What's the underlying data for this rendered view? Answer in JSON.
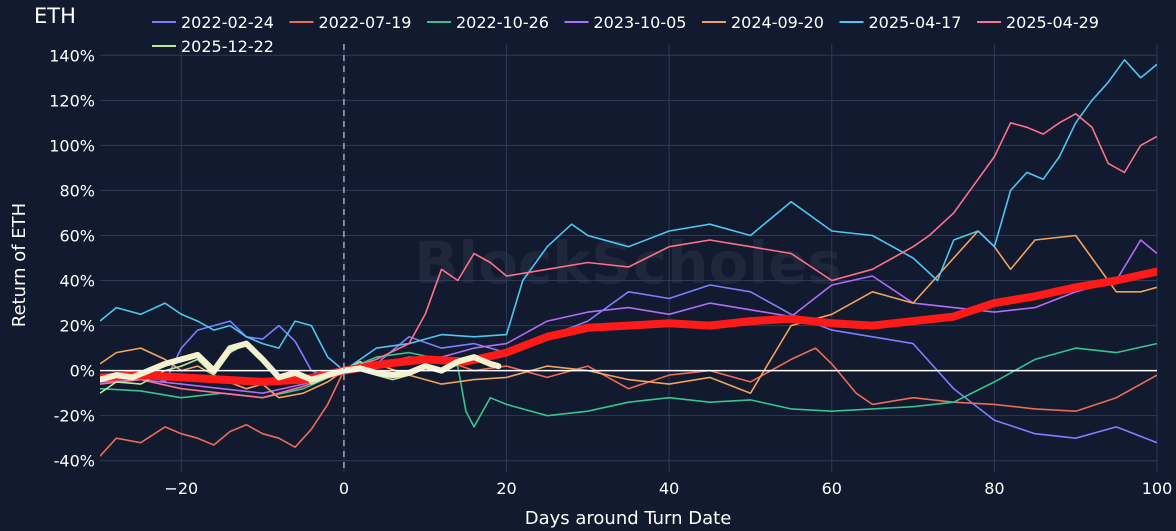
{
  "chart_data": {
    "type": "line",
    "title": "ETH",
    "xlabel": "Days around Turn Date",
    "ylabel": "Return of ETH",
    "xlim": [
      -30,
      100
    ],
    "ylim": [
      -45,
      145
    ],
    "xticks": [
      -20,
      0,
      20,
      40,
      60,
      80,
      100
    ],
    "yticks": [
      -40,
      -20,
      0,
      20,
      40,
      60,
      80,
      100,
      120,
      140
    ],
    "ytick_suffix": "%",
    "grid": true,
    "legend_position": "top",
    "watermark": "BlockScholes",
    "colors": {
      "background": "#111a2e",
      "grid": "#2c3a5a",
      "text": "#ffffff",
      "zero_line": "#ffffff",
      "turn_line": "#9aa3b5",
      "average": "#ff1a1a",
      "recent_average": "#f4f1d0"
    },
    "series": [
      {
        "name": "2022-02-24",
        "color": "#7a80ff",
        "x": [
          -30,
          -25,
          -22,
          -20,
          -18,
          -16,
          -14,
          -12,
          -10,
          -8,
          -6,
          -4,
          -2,
          0,
          4,
          8,
          12,
          16,
          20,
          25,
          30,
          35,
          40,
          45,
          50,
          55,
          60,
          65,
          70,
          75,
          80,
          85,
          90,
          95,
          100
        ],
        "y": [
          -2,
          0,
          -5,
          10,
          18,
          20,
          22,
          15,
          14,
          20,
          13,
          0,
          -3,
          0,
          3,
          15,
          10,
          12,
          8,
          15,
          22,
          35,
          32,
          38,
          35,
          25,
          18,
          15,
          12,
          -8,
          -22,
          -28,
          -30,
          -25,
          -32
        ]
      },
      {
        "name": "2022-07-19",
        "color": "#ee6b55",
        "x": [
          -30,
          -28,
          -25,
          -22,
          -20,
          -18,
          -16,
          -14,
          -12,
          -10,
          -8,
          -6,
          -4,
          -2,
          0,
          4,
          8,
          12,
          16,
          20,
          25,
          30,
          35,
          40,
          45,
          50,
          55,
          58,
          60,
          63,
          65,
          70,
          75,
          80,
          85,
          90,
          95,
          100
        ],
        "y": [
          -38,
          -30,
          -32,
          -25,
          -28,
          -30,
          -33,
          -27,
          -24,
          -28,
          -30,
          -34,
          -26,
          -15,
          0,
          3,
          6,
          5,
          0,
          2,
          -3,
          2,
          -8,
          -2,
          0,
          -5,
          5,
          10,
          3,
          -10,
          -15,
          -12,
          -14,
          -15,
          -17,
          -18,
          -12,
          -2
        ]
      },
      {
        "name": "2022-10-26",
        "color": "#35c490",
        "x": [
          -30,
          -25,
          -20,
          -15,
          -10,
          -5,
          0,
          4,
          8,
          12,
          14,
          15,
          16,
          18,
          20,
          25,
          30,
          35,
          40,
          45,
          50,
          55,
          60,
          65,
          70,
          75,
          80,
          85,
          90,
          95,
          100
        ],
        "y": [
          -8,
          -9,
          -12,
          -10,
          -12,
          -8,
          0,
          6,
          8,
          5,
          2,
          -18,
          -25,
          -12,
          -15,
          -20,
          -18,
          -14,
          -12,
          -14,
          -13,
          -17,
          -18,
          -17,
          -16,
          -14,
          -5,
          5,
          10,
          8,
          12
        ]
      },
      {
        "name": "2023-10-05",
        "color": "#b06ef5",
        "x": [
          -30,
          -25,
          -20,
          -15,
          -10,
          -5,
          0,
          4,
          8,
          12,
          16,
          20,
          25,
          30,
          35,
          40,
          45,
          50,
          55,
          60,
          65,
          70,
          75,
          80,
          85,
          90,
          95,
          98,
          100
        ],
        "y": [
          -5,
          -4,
          -6,
          -8,
          -10,
          -6,
          0,
          2,
          4,
          6,
          10,
          12,
          22,
          26,
          28,
          25,
          30,
          27,
          24,
          38,
          42,
          30,
          28,
          26,
          28,
          35,
          40,
          58,
          52
        ]
      },
      {
        "name": "2024-09-20",
        "color": "#f3a35c",
        "x": [
          -30,
          -28,
          -25,
          -22,
          -20,
          -18,
          -15,
          -12,
          -10,
          -8,
          -5,
          -2,
          0,
          4,
          8,
          12,
          16,
          20,
          25,
          30,
          35,
          40,
          45,
          50,
          55,
          60,
          65,
          70,
          75,
          78,
          80,
          82,
          85,
          90,
          95,
          98,
          100
        ],
        "y": [
          3,
          8,
          10,
          5,
          0,
          2,
          -4,
          -8,
          -6,
          -12,
          -10,
          -5,
          0,
          3,
          -2,
          -6,
          -4,
          -3,
          2,
          0,
          -4,
          -6,
          -3,
          -10,
          20,
          25,
          35,
          30,
          50,
          62,
          55,
          45,
          58,
          60,
          35,
          35,
          37
        ]
      },
      {
        "name": "2025-04-17",
        "color": "#4fc6f0",
        "x": [
          -30,
          -28,
          -25,
          -22,
          -20,
          -18,
          -16,
          -14,
          -12,
          -10,
          -8,
          -6,
          -4,
          -2,
          0,
          4,
          8,
          12,
          16,
          20,
          22,
          25,
          28,
          30,
          35,
          40,
          45,
          50,
          55,
          60,
          65,
          70,
          73,
          75,
          78,
          80,
          82,
          84,
          86,
          88,
          90,
          92,
          94,
          96,
          98,
          100
        ],
        "y": [
          22,
          28,
          25,
          30,
          25,
          22,
          18,
          20,
          15,
          12,
          10,
          22,
          20,
          6,
          0,
          10,
          12,
          16,
          15,
          16,
          40,
          55,
          65,
          60,
          55,
          62,
          65,
          60,
          75,
          62,
          60,
          50,
          40,
          58,
          62,
          55,
          80,
          88,
          85,
          95,
          110,
          120,
          128,
          138,
          130,
          136
        ]
      },
      {
        "name": "2025-04-29",
        "color": "#ff6f8f",
        "x": [
          -30,
          -25,
          -20,
          -15,
          -10,
          -5,
          0,
          4,
          8,
          10,
          12,
          14,
          16,
          18,
          20,
          25,
          30,
          35,
          40,
          45,
          50,
          55,
          60,
          65,
          70,
          72,
          75,
          78,
          80,
          82,
          84,
          86,
          88,
          90,
          92,
          94,
          96,
          98,
          100
        ],
        "y": [
          -6,
          -4,
          -8,
          -10,
          -12,
          -7,
          0,
          5,
          12,
          25,
          45,
          40,
          52,
          48,
          42,
          45,
          48,
          46,
          55,
          58,
          55,
          52,
          40,
          45,
          55,
          60,
          70,
          85,
          95,
          110,
          108,
          105,
          110,
          114,
          108,
          92,
          88,
          100,
          104
        ]
      },
      {
        "name": "2025-12-22",
        "color": "#b8e89a",
        "x": [
          -30,
          -28,
          -25,
          -22,
          -20,
          -18,
          -16,
          -14,
          -12,
          -10,
          -8,
          -6,
          -4,
          -2,
          0,
          2,
          4,
          6,
          8,
          10,
          12,
          14,
          16,
          18,
          19
        ],
        "y": [
          -10,
          -5,
          -6,
          0,
          2,
          5,
          -2,
          8,
          12,
          4,
          -4,
          0,
          -6,
          -3,
          0,
          4,
          -2,
          -4,
          -2,
          1,
          0,
          3,
          6,
          4,
          3
        ]
      }
    ],
    "average_series": {
      "x": [
        -30,
        -25,
        -20,
        -15,
        -10,
        -5,
        0,
        5,
        10,
        15,
        20,
        25,
        30,
        35,
        40,
        45,
        50,
        55,
        60,
        65,
        70,
        75,
        80,
        85,
        90,
        95,
        100
      ],
      "y": [
        -3,
        -2,
        -3,
        -4,
        -5,
        -4,
        0,
        3,
        5,
        4,
        8,
        15,
        19,
        20,
        21,
        20,
        22,
        23,
        21,
        20,
        22,
        24,
        30,
        33,
        37,
        40,
        44
      ]
    },
    "recent_average_series": {
      "x": [
        -30,
        -28,
        -26,
        -24,
        -22,
        -20,
        -18,
        -16,
        -14,
        -12,
        -10,
        -8,
        -6,
        -4,
        -2,
        0,
        2,
        4,
        6,
        8,
        10,
        12,
        14,
        16,
        18,
        19
      ],
      "y": [
        -4,
        -2,
        -3,
        0,
        3,
        5,
        7,
        0,
        10,
        12,
        5,
        -3,
        -1,
        -4,
        -2,
        0,
        1,
        -1,
        -2,
        -1,
        2,
        0,
        4,
        6,
        3,
        2
      ]
    }
  }
}
